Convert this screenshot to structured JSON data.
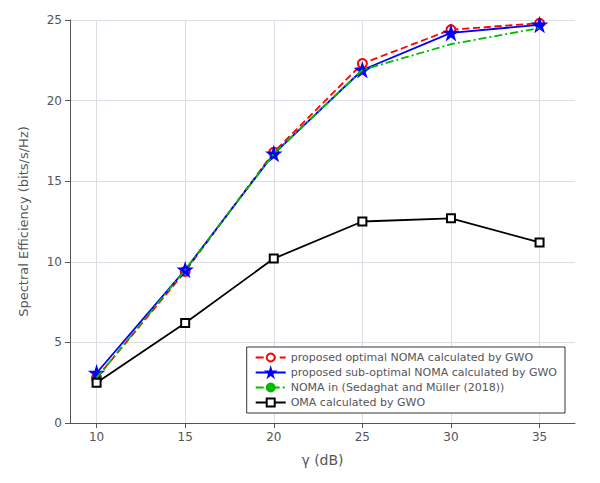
{
  "chart_data": {
    "type": "line",
    "xlabel": "γ (dB)",
    "ylabel": "Spectral Efficiency (bits/s/Hz)",
    "x": [
      10,
      15,
      20,
      25,
      30,
      35
    ],
    "series": [
      {
        "name": "proposed optimal NOMA calculated by GWO",
        "color": "#ff0000",
        "marker": "circle",
        "line_style": "dashed",
        "values": [
          2.8,
          9.4,
          16.8,
          22.3,
          24.4,
          24.8
        ]
      },
      {
        "name": "proposed sub-optimal NOMA calculated by GWO",
        "color": "#0000ff",
        "marker": "star",
        "line_style": "solid",
        "values": [
          3.1,
          9.5,
          16.7,
          21.9,
          24.2,
          24.7
        ]
      },
      {
        "name": "NOMA in (Sedaghat and Müller (2018))",
        "color": "#00bb00",
        "marker": "none",
        "line_style": "dashdot",
        "values": [
          2.8,
          9.5,
          16.7,
          21.9,
          23.5,
          24.5
        ]
      },
      {
        "name": "OMA calculated by GWO",
        "color": "#000000",
        "marker": "square",
        "line_style": "solid",
        "values": [
          2.5,
          6.2,
          10.2,
          12.5,
          12.7,
          11.2
        ]
      }
    ],
    "xlim": [
      8.5,
      37
    ],
    "ylim": [
      0,
      25
    ],
    "xticks": [
      10,
      15,
      20,
      25,
      30,
      35
    ],
    "yticks": [
      0,
      5,
      10,
      15,
      20,
      25
    ],
    "grid": true,
    "legend": "lower right"
  }
}
